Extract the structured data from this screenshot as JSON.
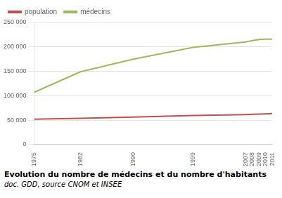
{
  "chart_data": {
    "type": "line",
    "title": "Evolution du nombre de médecins et du nombre d'habitants",
    "subtitle": "doc. GDD, source CNOM et INSEE",
    "x": [
      1975,
      1982,
      1990,
      1999,
      2007,
      2008,
      2009,
      2010,
      2011
    ],
    "series": [
      {
        "name": "population",
        "color": "#c0504d",
        "values": [
          52000,
          54000,
          56500,
          59500,
          61500,
          62000,
          62500,
          63000,
          63500
        ]
      },
      {
        "name": "médecins",
        "color": "#9bbb59",
        "values": [
          107000,
          149000,
          175000,
          199000,
          210000,
          213000,
          215000,
          216000,
          216000
        ]
      }
    ],
    "xlim": [
      1975,
      2011
    ],
    "xticks": [
      1975,
      1982,
      1990,
      1999,
      2007,
      2008,
      2009,
      2010,
      2011
    ],
    "ylim": [
      0,
      250000
    ],
    "yticks": [
      0,
      {
        "value": 50000,
        "label": "50 000"
      },
      {
        "value": 100000,
        "label": "100 000"
      },
      {
        "value": 150000,
        "label": "150 000"
      },
      {
        "value": 200000,
        "label": "200 000"
      },
      {
        "value": 250000,
        "label": "250 000"
      }
    ],
    "grid": true,
    "legend": "upper left"
  }
}
